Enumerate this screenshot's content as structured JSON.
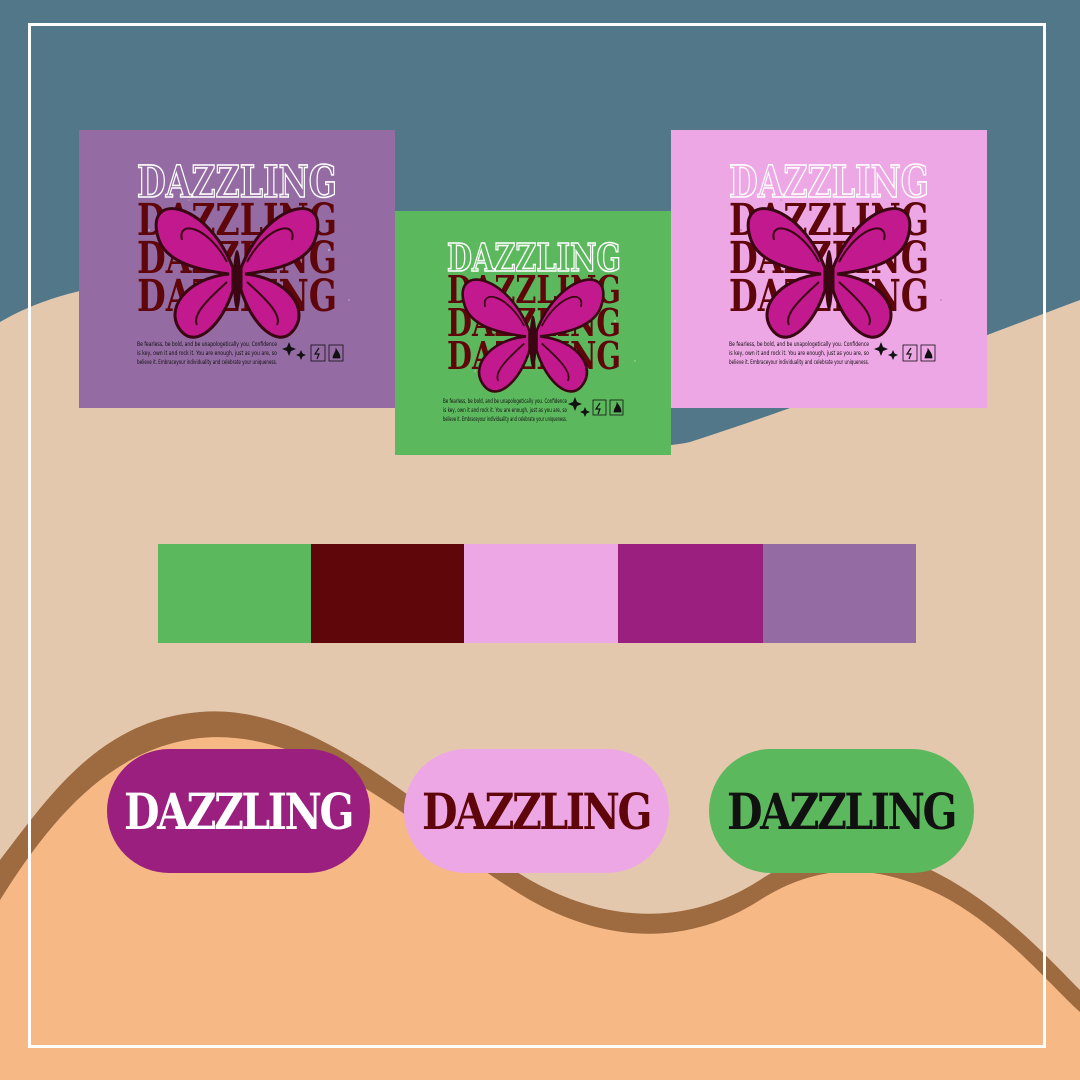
{
  "colors": {
    "slate_blue": "#527789",
    "beige": "#e3c8ae",
    "peach": "#f6b885",
    "wave_brown": "#9e6a3f",
    "frame": "#ffffff"
  },
  "cards": [
    {
      "word": "DAZZLING",
      "blurb_lines": [
        "Be fearless, be bold, and be unapologetically you. Confidence",
        "is key, own it and rock it. You are enough, just as you are, so",
        "believe it. Embraceyour individuality and celebrate your uniqueness."
      ],
      "background": "#946ba2"
    },
    {
      "word": "DAZZLING",
      "blurb_lines": [
        "Be fearless, be bold, and be unapologetically you. Confidence",
        "is key, own it and rock it. You are enough, just as you are, so",
        "believe it. Embraceyour individuality and celebrate your uniqueness."
      ],
      "background": "#5cb85d"
    },
    {
      "word": "DAZZLING",
      "blurb_lines": [
        "Be fearless, be bold, and be unapologetically you. Confidence",
        "is key, own it and rock it. You are enough, just as you are, so",
        "believe it. Embraceyour individuality and celebrate your uniqueness."
      ],
      "background": "#eda7e5"
    }
  ],
  "palette": [
    "#5cb85d",
    "#5e060a",
    "#eda7e5",
    "#9a1f7e",
    "#946ba2"
  ],
  "pills": [
    {
      "label": "DAZZLING",
      "background": "#9a1f7e",
      "text_color": "#ffffff"
    },
    {
      "label": "DAZZLING",
      "background": "#eda7e5",
      "text_color": "#5e060a"
    },
    {
      "label": "DAZZLING",
      "background": "#5cb85d",
      "text_color": "#111111"
    }
  ]
}
